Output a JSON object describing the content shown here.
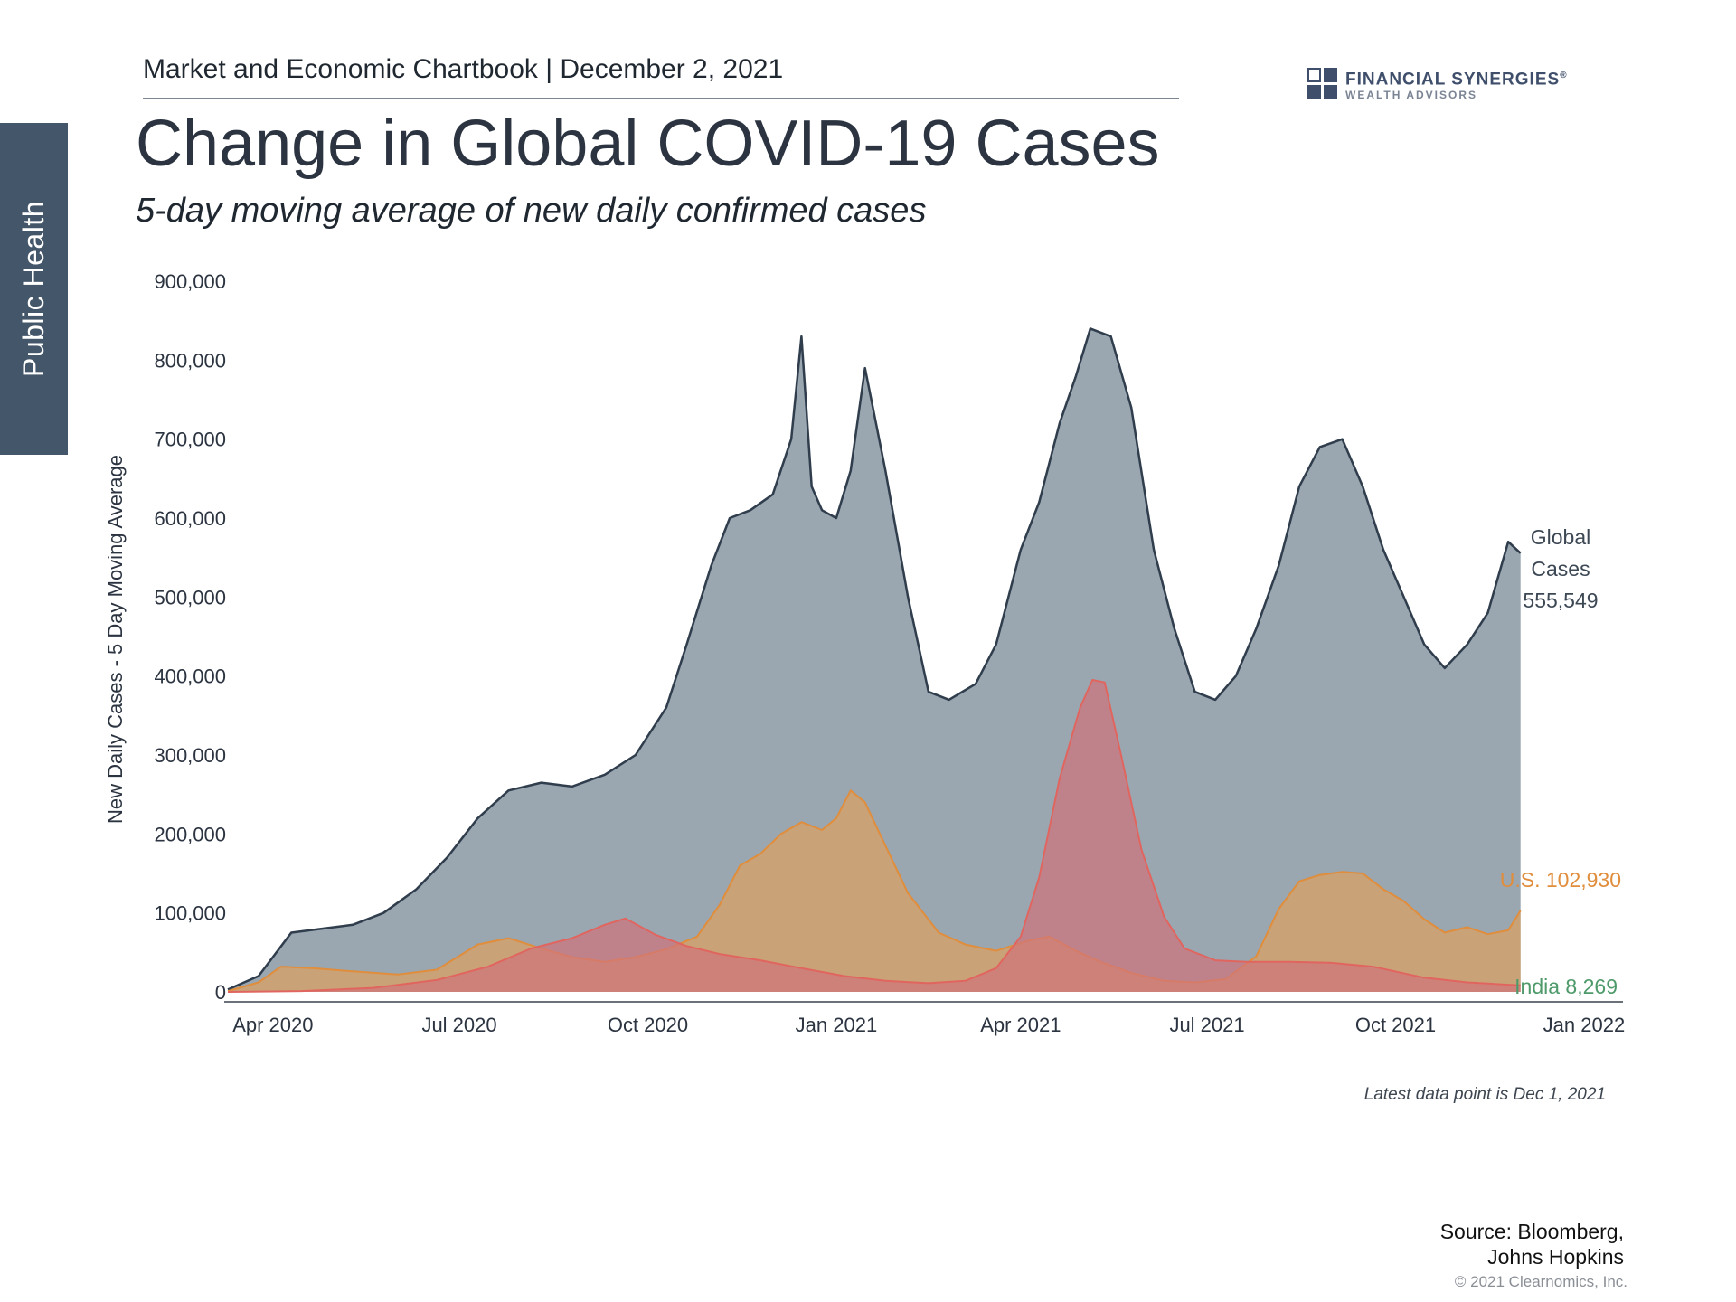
{
  "side_tab": "Public Health",
  "header": {
    "chartbook": "Market and Economic Chartbook | December 2, 2021",
    "logo_line1": "FINANCIAL SYNERGIES",
    "logo_registered": "®",
    "logo_line2": "WEALTH ADVISORS"
  },
  "title": "Change in Global COVID-19 Cases",
  "subtitle": "5-day moving average of new daily confirmed cases",
  "footnote": "Latest data point is Dec 1, 2021",
  "source_line1": "Source: Bloomberg,",
  "source_line2": "Johns Hopkins",
  "copyright": "© 2021 Clearnomics, Inc.",
  "colors": {
    "global_fill": "#9aa6b0",
    "global_line": "#2f3d4c",
    "us_fill": "#d9a064",
    "us_line": "#e08d3c",
    "india_fill": "#d0737b",
    "india_line": "#e1655f",
    "us_label": "#e08d3c",
    "india_label": "#4e9a6a",
    "global_label": "#3d4855"
  },
  "chart_data": {
    "type": "area",
    "ylabel": "New Daily Cases - 5 Day Moving Average",
    "ylim": [
      0,
      900000
    ],
    "yticks": [
      0,
      100000,
      200000,
      300000,
      400000,
      500000,
      600000,
      700000,
      800000,
      900000
    ],
    "ytick_labels": [
      "0",
      "100,000",
      "200,000",
      "300,000",
      "400,000",
      "500,000",
      "600,000",
      "700,000",
      "800,000",
      "900,000"
    ],
    "xlim": [
      "2020-03-10",
      "2022-01-20"
    ],
    "xticks": [
      "2020-04-01",
      "2020-07-01",
      "2020-10-01",
      "2021-01-01",
      "2021-04-01",
      "2021-07-01",
      "2021-10-01",
      "2022-01-01"
    ],
    "xtick_labels": [
      "Apr 2020",
      "Jul 2020",
      "Oct 2020",
      "Jan 2021",
      "Apr 2021",
      "Jul 2021",
      "Oct 2021",
      "Jan 2022"
    ],
    "grid": false,
    "series": [
      {
        "name": "Global Cases",
        "end_label": [
          "Global",
          "Cases",
          "555,549"
        ],
        "x": [
          "2020-03-10",
          "2020-03-25",
          "2020-04-10",
          "2020-04-25",
          "2020-05-10",
          "2020-05-25",
          "2020-06-10",
          "2020-06-25",
          "2020-07-10",
          "2020-07-25",
          "2020-08-10",
          "2020-08-25",
          "2020-09-10",
          "2020-09-25",
          "2020-10-10",
          "2020-10-20",
          "2020-11-01",
          "2020-11-10",
          "2020-11-20",
          "2020-12-01",
          "2020-12-10",
          "2020-12-15",
          "2020-12-20",
          "2020-12-25",
          "2021-01-01",
          "2021-01-08",
          "2021-01-15",
          "2021-01-25",
          "2021-02-05",
          "2021-02-15",
          "2021-02-25",
          "2021-03-10",
          "2021-03-20",
          "2021-04-01",
          "2021-04-10",
          "2021-04-20",
          "2021-04-28",
          "2021-05-05",
          "2021-05-15",
          "2021-05-25",
          "2021-06-05",
          "2021-06-15",
          "2021-06-25",
          "2021-07-05",
          "2021-07-15",
          "2021-07-25",
          "2021-08-05",
          "2021-08-15",
          "2021-08-25",
          "2021-09-05",
          "2021-09-15",
          "2021-09-25",
          "2021-10-05",
          "2021-10-15",
          "2021-10-25",
          "2021-11-05",
          "2021-11-15",
          "2021-11-25",
          "2021-12-01"
        ],
        "values": [
          3000,
          20000,
          75000,
          80000,
          85000,
          100000,
          130000,
          170000,
          220000,
          255000,
          265000,
          260000,
          275000,
          300000,
          360000,
          440000,
          540000,
          600000,
          610000,
          630000,
          700000,
          830000,
          640000,
          610000,
          600000,
          660000,
          790000,
          660000,
          500000,
          380000,
          370000,
          390000,
          440000,
          560000,
          620000,
          720000,
          780000,
          840000,
          830000,
          740000,
          560000,
          460000,
          380000,
          370000,
          400000,
          460000,
          540000,
          640000,
          690000,
          700000,
          640000,
          560000,
          500000,
          440000,
          410000,
          440000,
          480000,
          570000,
          555549
        ]
      },
      {
        "name": "U.S.",
        "end_label": "U.S. 102,930",
        "x": [
          "2020-03-10",
          "2020-03-25",
          "2020-04-05",
          "2020-04-20",
          "2020-05-10",
          "2020-06-01",
          "2020-06-20",
          "2020-07-10",
          "2020-07-25",
          "2020-08-10",
          "2020-08-25",
          "2020-09-10",
          "2020-09-25",
          "2020-10-10",
          "2020-10-25",
          "2020-11-05",
          "2020-11-15",
          "2020-11-25",
          "2020-12-05",
          "2020-12-15",
          "2020-12-25",
          "2021-01-01",
          "2021-01-08",
          "2021-01-15",
          "2021-01-25",
          "2021-02-05",
          "2021-02-20",
          "2021-03-05",
          "2021-03-20",
          "2021-04-05",
          "2021-04-15",
          "2021-04-28",
          "2021-05-10",
          "2021-05-25",
          "2021-06-10",
          "2021-06-25",
          "2021-07-10",
          "2021-07-25",
          "2021-08-05",
          "2021-08-15",
          "2021-08-25",
          "2021-09-05",
          "2021-09-15",
          "2021-09-25",
          "2021-10-05",
          "2021-10-15",
          "2021-10-25",
          "2021-11-05",
          "2021-11-15",
          "2021-11-25",
          "2021-12-01"
        ],
        "values": [
          1000,
          12000,
          32000,
          30000,
          26000,
          22000,
          28000,
          60000,
          68000,
          55000,
          44000,
          38000,
          44000,
          54000,
          70000,
          110000,
          160000,
          175000,
          200000,
          215000,
          205000,
          220000,
          255000,
          240000,
          185000,
          125000,
          75000,
          60000,
          52000,
          65000,
          70000,
          52000,
          38000,
          24000,
          14000,
          12000,
          16000,
          45000,
          105000,
          140000,
          148000,
          152000,
          150000,
          130000,
          115000,
          92000,
          75000,
          82000,
          73000,
          78000,
          102930
        ]
      },
      {
        "name": "India",
        "end_label": "India 8,269",
        "x": [
          "2020-03-10",
          "2020-04-15",
          "2020-05-20",
          "2020-06-20",
          "2020-07-15",
          "2020-08-05",
          "2020-08-25",
          "2020-09-10",
          "2020-09-20",
          "2020-10-05",
          "2020-10-20",
          "2020-11-05",
          "2020-11-25",
          "2020-12-15",
          "2021-01-05",
          "2021-01-25",
          "2021-02-15",
          "2021-03-05",
          "2021-03-20",
          "2021-04-01",
          "2021-04-10",
          "2021-04-20",
          "2021-04-30",
          "2021-05-06",
          "2021-05-12",
          "2021-05-20",
          "2021-05-30",
          "2021-06-10",
          "2021-06-20",
          "2021-07-05",
          "2021-07-20",
          "2021-08-10",
          "2021-08-30",
          "2021-09-20",
          "2021-10-15",
          "2021-11-05",
          "2021-11-25",
          "2021-12-01"
        ],
        "values": [
          0,
          1000,
          5000,
          15000,
          32000,
          55000,
          68000,
          85000,
          93000,
          72000,
          58000,
          48000,
          40000,
          30000,
          20000,
          14000,
          11000,
          14000,
          30000,
          70000,
          145000,
          270000,
          360000,
          395000,
          392000,
          300000,
          180000,
          95000,
          55000,
          40000,
          38000,
          38000,
          37000,
          32000,
          18000,
          12000,
          9000,
          8269
        ]
      }
    ]
  }
}
